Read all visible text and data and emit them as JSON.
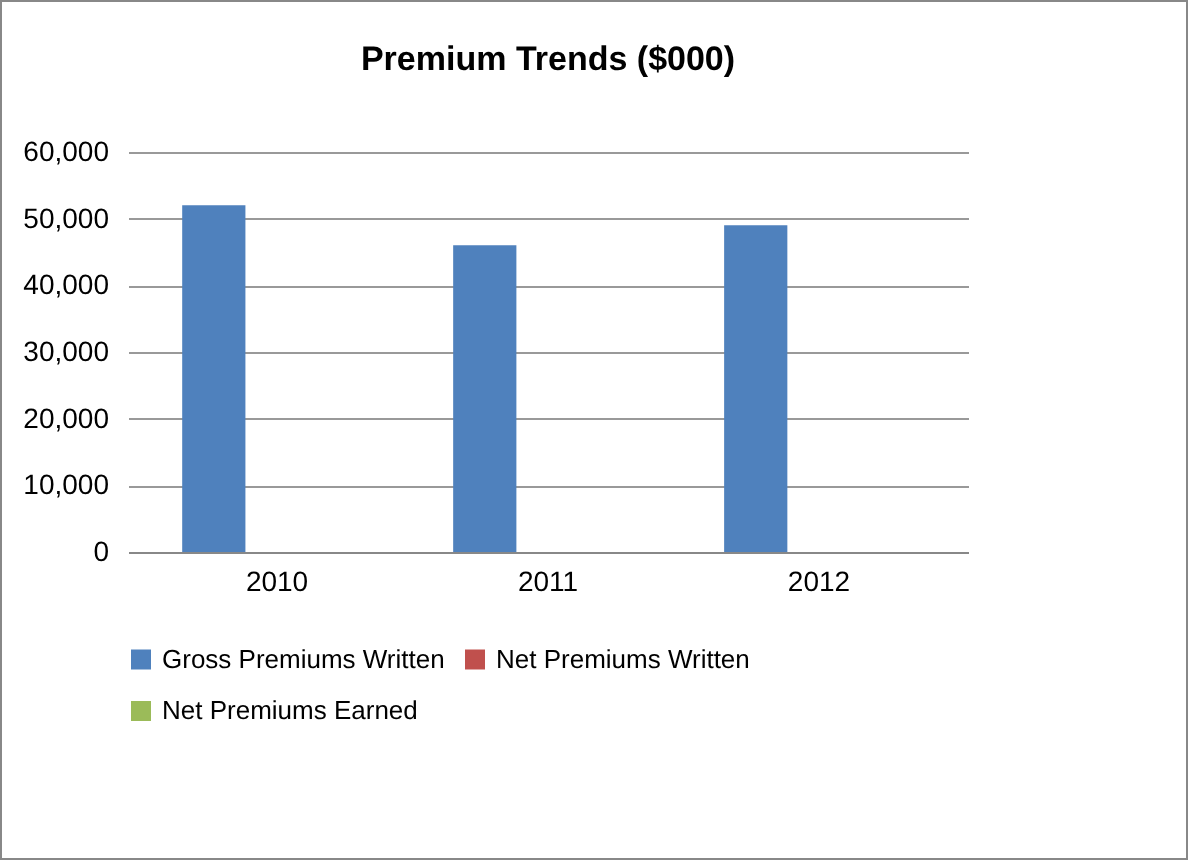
{
  "chart_data": {
    "type": "bar",
    "title": "Premium Trends ($000)",
    "categories": [
      "2010",
      "2011",
      "2012"
    ],
    "series": [
      {
        "name": "Gross Premiums Written",
        "color": "#4f81bd",
        "values": [
          52000,
          46000,
          49000
        ]
      },
      {
        "name": "Net Premiums Written",
        "color": "#c0504d",
        "values": [
          0,
          0,
          0
        ]
      },
      {
        "name": "Net Premiums Earned",
        "color": "#9bbb59",
        "values": [
          0,
          0,
          0
        ]
      }
    ],
    "ylim": [
      0,
      60000
    ],
    "yticks": [
      0,
      {
        "value": 10000,
        "label": "10,000"
      },
      {
        "value": 20000,
        "label": "20,000"
      },
      {
        "value": 30000,
        "label": "30,000"
      },
      {
        "value": 40000,
        "label": "40,000"
      },
      {
        "value": 50000,
        "label": "50,000"
      },
      {
        "value": 60000,
        "label": "60,000"
      }
    ],
    "grid": "y",
    "legend": "bottom"
  }
}
